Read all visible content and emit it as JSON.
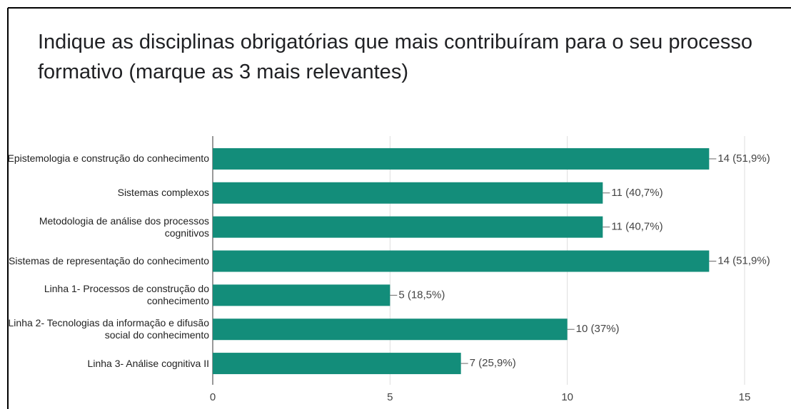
{
  "chart_data": {
    "type": "hbar",
    "title": "Indique as disciplinas obrigatórias que mais contribuíram para o seu processo formativo (marque as 3 mais relevantes)",
    "categories": [
      "Epistemologia e construção do conhecimento",
      "Sistemas complexos",
      "Metodologia de análise dos processos cognitivos",
      "Sistemas de representação do conhecimento",
      "Linha 1- Processos de construção do conhecimento",
      "Linha 2- Tecnologias da informação e difusão social do conhecimento",
      "Linha 3- Análise cognitiva II"
    ],
    "values": [
      14,
      11,
      11,
      14,
      5,
      10,
      7
    ],
    "value_labels": [
      "14 (51,9%)",
      "11 (40,7%)",
      "11 (40,7%)",
      "14 (51,9%)",
      "5 (18,5%)",
      "10 (37%)",
      "7 (25,9%)"
    ],
    "color": "#138d7a",
    "xlim": [
      0,
      15
    ],
    "xticks": [
      0,
      5,
      10,
      15
    ],
    "grid": true
  }
}
